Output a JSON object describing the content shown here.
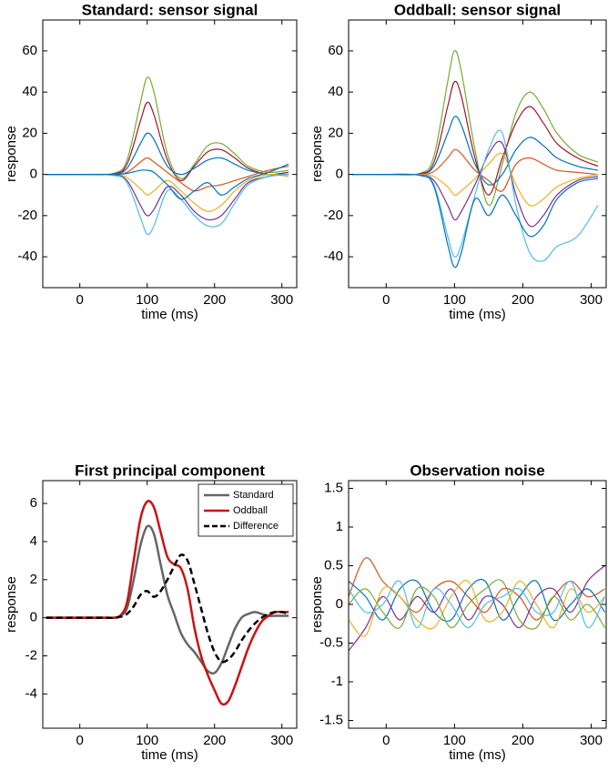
{
  "chart_data": [
    {
      "type": "line",
      "title": "Standard: sensor signal",
      "xlabel": "time (ms)",
      "ylabel": "response",
      "xlim": [
        -55,
        322
      ],
      "ylim": [
        -55,
        75
      ],
      "xticks": [
        0,
        100,
        200,
        300
      ],
      "yticks": [
        -40,
        -20,
        0,
        20,
        40,
        60
      ],
      "x": [
        -50,
        0,
        50,
        70,
        90,
        100,
        110,
        130,
        150,
        170,
        190,
        210,
        230,
        250,
        280,
        310
      ],
      "series": [
        {
          "color": "#77ac30",
          "values": [
            0,
            0,
            0.5,
            7,
            35,
            47,
            40,
            10,
            -2,
            5,
            14,
            15,
            10,
            4,
            1,
            2
          ]
        },
        {
          "color": "#a2142f",
          "values": [
            0,
            0,
            0.3,
            5,
            26,
            35,
            29,
            7,
            -3,
            4,
            11,
            12,
            8,
            3,
            0,
            1
          ]
        },
        {
          "color": "#0072bd",
          "values": [
            0,
            0,
            0.2,
            3,
            15,
            20,
            17,
            4,
            0,
            3,
            7,
            8,
            5,
            2,
            0,
            0
          ]
        },
        {
          "color": "#d95319",
          "values": [
            0,
            0,
            0,
            1,
            6,
            8,
            6,
            1,
            -4,
            -8,
            -6,
            -5,
            -3,
            -1,
            2,
            4
          ]
        },
        {
          "color": "#edb120",
          "values": [
            0,
            0,
            0,
            -1.5,
            -7,
            -10,
            -8,
            -3,
            -8,
            -14,
            -18,
            -15,
            -8,
            -3,
            0,
            -1
          ]
        },
        {
          "color": "#7e2f8e",
          "values": [
            0,
            0,
            -0.3,
            -3,
            -15,
            -20,
            -17,
            -6,
            -10,
            -18,
            -22,
            -20,
            -12,
            -4,
            -1,
            0
          ]
        },
        {
          "color": "#4dbeee",
          "values": [
            0,
            0,
            -0.5,
            -4,
            -21,
            -29,
            -25,
            -8,
            -12,
            -20,
            -25,
            -24,
            -14,
            -5,
            -1,
            0
          ]
        },
        {
          "color": "#0072bd",
          "values": [
            0,
            0,
            0,
            0.5,
            2,
            2,
            1,
            -5,
            -12,
            -8,
            -4,
            -10,
            -6,
            -2,
            1,
            5
          ]
        }
      ]
    },
    {
      "type": "line",
      "title": "Oddball: sensor signal",
      "xlabel": "time (ms)",
      "ylabel": "response",
      "xlim": [
        -55,
        322
      ],
      "ylim": [
        -55,
        75
      ],
      "xticks": [
        0,
        100,
        200,
        300
      ],
      "yticks": [
        -40,
        -20,
        0,
        20,
        40,
        60
      ],
      "x": [
        -50,
        0,
        50,
        70,
        90,
        100,
        110,
        130,
        150,
        170,
        190,
        210,
        230,
        250,
        280,
        310
      ],
      "series": [
        {
          "color": "#77ac30",
          "values": [
            0,
            0,
            0.6,
            9,
            45,
            60,
            50,
            12,
            -15,
            5,
            30,
            40,
            32,
            20,
            10,
            6
          ]
        },
        {
          "color": "#a2142f",
          "values": [
            0,
            0,
            0.4,
            6,
            33,
            45,
            38,
            8,
            -10,
            8,
            25,
            33,
            25,
            15,
            8,
            4
          ]
        },
        {
          "color": "#0072bd",
          "values": [
            0,
            0,
            0.2,
            4,
            20,
            28,
            24,
            5,
            -5,
            0,
            12,
            18,
            14,
            8,
            4,
            2
          ]
        },
        {
          "color": "#d95319",
          "values": [
            0,
            0,
            0,
            1.5,
            8,
            12,
            10,
            2,
            -3,
            -8,
            5,
            8,
            5,
            2,
            1,
            0
          ]
        },
        {
          "color": "#edb120",
          "values": [
            0,
            0,
            0,
            -1,
            -6,
            -10,
            -8,
            -2,
            5,
            10,
            -5,
            -15,
            -12,
            -6,
            -2,
            0
          ]
        },
        {
          "color": "#7e2f8e",
          "values": [
            0,
            0,
            -0.2,
            -3,
            -15,
            -22,
            -18,
            -5,
            10,
            15,
            -10,
            -25,
            -20,
            -10,
            -3,
            -1
          ]
        },
        {
          "color": "#4dbeee",
          "values": [
            0,
            0,
            -0.4,
            -5,
            -30,
            -40,
            -34,
            -10,
            12,
            20,
            -15,
            -38,
            -42,
            -35,
            -30,
            -15
          ]
        },
        {
          "color": "#0072bd",
          "values": [
            0,
            0,
            -0.5,
            -6,
            -34,
            -45,
            -38,
            -12,
            -20,
            -10,
            -20,
            -30,
            -25,
            -12,
            -4,
            -2
          ]
        }
      ]
    },
    {
      "type": "line",
      "title": "First principal component",
      "xlabel": "time (ms)",
      "ylabel": "response",
      "xlim": [
        -55,
        322
      ],
      "ylim": [
        -5.8,
        7.2
      ],
      "xticks": [
        0,
        100,
        200,
        300
      ],
      "yticks": [
        -4,
        -2,
        0,
        2,
        4,
        6
      ],
      "legend": "upper right",
      "x": [
        -50,
        -40,
        -30,
        -20,
        -10,
        0,
        10,
        20,
        30,
        40,
        50,
        60,
        70,
        80,
        90,
        100,
        110,
        120,
        130,
        140,
        150,
        160,
        170,
        180,
        190,
        200,
        210,
        220,
        230,
        240,
        250,
        260,
        270,
        280,
        290,
        300,
        310
      ],
      "series": [
        {
          "name": "Standard",
          "color": "#666666",
          "linestyle": "solid",
          "values": [
            0,
            0,
            0,
            0,
            0,
            0,
            0,
            0,
            0,
            0,
            0,
            0.1,
            0.5,
            2,
            3.8,
            4.8,
            4.4,
            2.8,
            1.2,
            0.2,
            -0.8,
            -1.4,
            -1.8,
            -2.3,
            -2.8,
            -2.9,
            -2.4,
            -1.5,
            -0.6,
            0,
            0.2,
            0.3,
            0.2,
            0.1,
            0.1,
            0.1,
            0.1
          ]
        },
        {
          "name": "Oddball",
          "color": "#cc1111",
          "linestyle": "solid",
          "values": [
            0,
            0,
            0,
            0,
            0,
            0,
            0,
            0,
            0,
            0,
            0,
            0.1,
            0.8,
            3,
            5.2,
            6.1,
            5.8,
            4.5,
            3.2,
            2.8,
            2.6,
            1.5,
            -0.5,
            -2.0,
            -3.0,
            -3.8,
            -4.5,
            -4.4,
            -3.6,
            -2.6,
            -1.6,
            -0.8,
            -0.2,
            0.1,
            0.3,
            0.3,
            0.3
          ]
        },
        {
          "name": "Difference",
          "color": "#000000",
          "linestyle": "dashed",
          "values": [
            0,
            0,
            0,
            0,
            0,
            0,
            0,
            0,
            0,
            0,
            0,
            0.05,
            0.2,
            0.6,
            1.2,
            1.4,
            1.1,
            1.4,
            2.0,
            2.7,
            3.3,
            3.0,
            1.8,
            0.5,
            -0.8,
            -1.8,
            -2.3,
            -2.2,
            -1.8,
            -1.2,
            -0.7,
            -0.3,
            0,
            0.2,
            0.3,
            0.3,
            0.2
          ]
        }
      ]
    },
    {
      "type": "line",
      "title": "Observation noise",
      "xlabel": "time (ms)",
      "ylabel": "response",
      "xlim": [
        -55,
        322
      ],
      "ylim": [
        -1.6,
        1.6
      ],
      "xticks": [
        0,
        100,
        200,
        300
      ],
      "yticks": [
        -1.5,
        -1,
        -0.5,
        0,
        0.5,
        1,
        1.5
      ],
      "x": [
        -55,
        -30,
        -5,
        20,
        45,
        70,
        95,
        120,
        145,
        170,
        195,
        220,
        245,
        270,
        295,
        320
      ],
      "series": [
        {
          "color": "#d95319",
          "values": [
            0.1,
            0.6,
            0.3,
            0.1,
            -0.1,
            0.2,
            0.3,
            0.1,
            -0.1,
            0.2,
            0.1,
            -0.2,
            0.1,
            0.3,
            0.1,
            0.2
          ]
        },
        {
          "color": "#7e2f8e",
          "values": [
            -0.6,
            -0.3,
            0.1,
            -0.2,
            0.1,
            -0.1,
            0.2,
            -0.2,
            0.1,
            0,
            -0.3,
            0.1,
            0.2,
            -0.1,
            0.3,
            0.5
          ]
        },
        {
          "color": "#0072bd",
          "values": [
            0.3,
            0.1,
            -0.2,
            0.2,
            0.3,
            -0.1,
            -0.2,
            0.2,
            0.3,
            -0.2,
            0.1,
            0.3,
            -0.2,
            0,
            0.2,
            -0.1
          ]
        },
        {
          "color": "#edb120",
          "values": [
            -0.2,
            -0.4,
            0.2,
            0.1,
            -0.2,
            -0.3,
            0.1,
            0.3,
            -0.2,
            -0.1,
            0.3,
            0,
            -0.3,
            0.2,
            -0.1,
            0.1
          ]
        },
        {
          "color": "#77ac30",
          "values": [
            0,
            0.2,
            -0.1,
            -0.3,
            0.2,
            0.1,
            -0.3,
            0,
            0.2,
            0.3,
            -0.2,
            -0.3,
            0.1,
            -0.2,
            0,
            -0.3
          ]
        },
        {
          "color": "#4dbeee",
          "values": [
            0.2,
            -0.1,
            0,
            0.3,
            -0.3,
            0.2,
            0,
            -0.3,
            0,
            0.1,
            0.2,
            -0.1,
            -0.1,
            0.3,
            -0.3,
            0.1
          ]
        }
      ]
    }
  ]
}
